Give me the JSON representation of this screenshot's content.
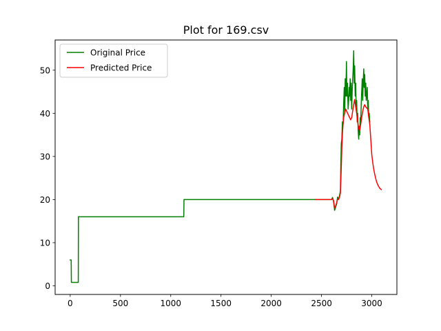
{
  "chart_data": {
    "type": "line",
    "title": "Plot for 169.csv",
    "xlabel": "",
    "ylabel": "",
    "xlim": [
      -150,
      3250
    ],
    "ylim": [
      -2,
      57
    ],
    "x_ticks": [
      0,
      500,
      1000,
      1500,
      2000,
      2500,
      3000
    ],
    "x_tick_labels": [
      "0",
      "500",
      "1000",
      "1500",
      "2000",
      "2500",
      "3000"
    ],
    "y_ticks": [
      0,
      10,
      20,
      30,
      40,
      50
    ],
    "y_tick_labels": [
      "0",
      "10",
      "20",
      "30",
      "40",
      "50"
    ],
    "grid": false,
    "legend": {
      "position": "top-left"
    },
    "series": [
      {
        "name": "Original Price",
        "color": "#008000",
        "points": [
          [
            0,
            6
          ],
          [
            10,
            6
          ],
          [
            12,
            0.8
          ],
          [
            80,
            0.8
          ],
          [
            82,
            16
          ],
          [
            1130,
            16
          ],
          [
            1132,
            20
          ],
          [
            2600,
            20
          ],
          [
            2610,
            20.5
          ],
          [
            2620,
            19.5
          ],
          [
            2630,
            17.5
          ],
          [
            2640,
            18.2
          ],
          [
            2650,
            19
          ],
          [
            2660,
            20.6
          ],
          [
            2670,
            20
          ],
          [
            2680,
            21
          ],
          [
            2688,
            22
          ],
          [
            2692,
            28
          ],
          [
            2697,
            33
          ],
          [
            2702,
            34
          ],
          [
            2708,
            38
          ],
          [
            2715,
            37.5
          ],
          [
            2720,
            42
          ],
          [
            2726,
            46
          ],
          [
            2731,
            40
          ],
          [
            2736,
            48
          ],
          [
            2742,
            44
          ],
          [
            2748,
            52
          ],
          [
            2752,
            44
          ],
          [
            2758,
            47
          ],
          [
            2765,
            41
          ],
          [
            2770,
            43
          ],
          [
            2775,
            46
          ],
          [
            2780,
            44
          ],
          [
            2785,
            48
          ],
          [
            2790,
            43
          ],
          [
            2795,
            47
          ],
          [
            2800,
            41
          ],
          [
            2805,
            45
          ],
          [
            2810,
            48
          ],
          [
            2815,
            50
          ],
          [
            2820,
            54.5
          ],
          [
            2825,
            47
          ],
          [
            2830,
            51
          ],
          [
            2835,
            44
          ],
          [
            2840,
            47
          ],
          [
            2845,
            41
          ],
          [
            2850,
            43
          ],
          [
            2855,
            38
          ],
          [
            2860,
            40
          ],
          [
            2865,
            36
          ],
          [
            2870,
            34
          ],
          [
            2875,
            37
          ],
          [
            2880,
            35
          ],
          [
            2885,
            39
          ],
          [
            2890,
            38
          ],
          [
            2895,
            42
          ],
          [
            2900,
            45
          ],
          [
            2905,
            48
          ],
          [
            2910,
            43
          ],
          [
            2915,
            47
          ],
          [
            2920,
            50.3
          ],
          [
            2925,
            46
          ],
          [
            2930,
            49
          ],
          [
            2935,
            44
          ],
          [
            2940,
            47
          ],
          [
            2945,
            43
          ],
          [
            2950,
            44
          ],
          [
            2955,
            46
          ],
          [
            2960,
            41
          ],
          [
            2965,
            43
          ],
          [
            2970,
            39
          ],
          [
            2975,
            40
          ],
          [
            2980,
            38
          ]
        ]
      },
      {
        "name": "Predicted Price",
        "color": "#ff0000",
        "points": [
          [
            2440,
            20
          ],
          [
            2600,
            20
          ],
          [
            2610,
            20.2
          ],
          [
            2620,
            19.8
          ],
          [
            2630,
            18
          ],
          [
            2640,
            18.5
          ],
          [
            2650,
            19.2
          ],
          [
            2660,
            20.1
          ],
          [
            2670,
            20
          ],
          [
            2680,
            20.6
          ],
          [
            2688,
            21.5
          ],
          [
            2695,
            26
          ],
          [
            2702,
            32
          ],
          [
            2710,
            36
          ],
          [
            2720,
            39
          ],
          [
            2730,
            40
          ],
          [
            2740,
            41
          ],
          [
            2750,
            40.5
          ],
          [
            2760,
            40
          ],
          [
            2770,
            39.5
          ],
          [
            2780,
            39
          ],
          [
            2790,
            38.5
          ],
          [
            2800,
            39
          ],
          [
            2810,
            40.5
          ],
          [
            2820,
            42
          ],
          [
            2830,
            43.2
          ],
          [
            2840,
            41.5
          ],
          [
            2850,
            40
          ],
          [
            2860,
            38
          ],
          [
            2870,
            36.5
          ],
          [
            2880,
            36
          ],
          [
            2890,
            37.5
          ],
          [
            2900,
            39
          ],
          [
            2910,
            40.5
          ],
          [
            2920,
            41.5
          ],
          [
            2930,
            42
          ],
          [
            2940,
            41.5
          ],
          [
            2950,
            41.2
          ],
          [
            2960,
            41
          ],
          [
            2970,
            39
          ],
          [
            2980,
            37.5
          ],
          [
            2990,
            34
          ],
          [
            3000,
            30.5
          ],
          [
            3010,
            28.5
          ],
          [
            3020,
            27
          ],
          [
            3030,
            25.8
          ],
          [
            3040,
            24.8
          ],
          [
            3050,
            24
          ],
          [
            3060,
            23.4
          ],
          [
            3070,
            23
          ],
          [
            3080,
            22.6
          ],
          [
            3095,
            22.3
          ]
        ]
      }
    ]
  }
}
